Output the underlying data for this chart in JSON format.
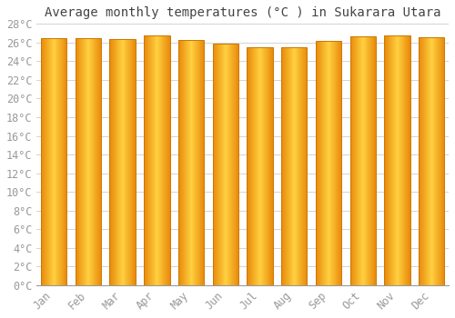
{
  "title": "Average monthly temperatures (°C ) in Sukarara Utara",
  "months": [
    "Jan",
    "Feb",
    "Mar",
    "Apr",
    "May",
    "Jun",
    "Jul",
    "Aug",
    "Sep",
    "Oct",
    "Nov",
    "Dec"
  ],
  "values": [
    26.5,
    26.5,
    26.4,
    26.8,
    26.3,
    25.9,
    25.5,
    25.5,
    26.2,
    26.7,
    26.8,
    26.6
  ],
  "bar_color_left": "#E8890A",
  "bar_color_center": "#FFD040",
  "bar_color_right": "#E88A0A",
  "bar_edge_color": "#CC7700",
  "background_color": "#FFFFFF",
  "grid_color": "#CCCCCC",
  "ylim": [
    0,
    28
  ],
  "ytick_step": 2,
  "title_fontsize": 10,
  "tick_fontsize": 8.5,
  "font_family": "monospace"
}
